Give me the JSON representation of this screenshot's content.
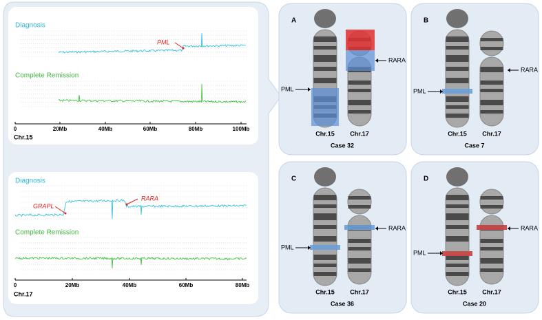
{
  "plots": [
    {
      "chromosome": "Chr.15",
      "track_labels": [
        "Diagnosis",
        "Complete Remission"
      ],
      "annotations": [
        "PML"
      ],
      "xticks": [
        "0",
        "20Mb",
        "40Mb",
        "60Mb",
        "80Mb",
        "100Mb"
      ]
    },
    {
      "chromosome": "Chr.17",
      "track_labels": [
        "Diagnosis",
        "Complete Remission"
      ],
      "annotations": [
        "GRAPL",
        "RARA"
      ],
      "xticks": [
        "0",
        "20Mb",
        "40Mb",
        "60Mb",
        "80Mb"
      ]
    }
  ],
  "panels": [
    {
      "letter": "A",
      "case": "Case 32",
      "chromosomes": [
        "Chr.15",
        "Chr.17"
      ],
      "genes": [
        "PML",
        "RARA"
      ]
    },
    {
      "letter": "B",
      "case": "Case 7",
      "chromosomes": [
        "Chr.15",
        "Chr.17"
      ],
      "genes": [
        "PML",
        "RARA"
      ]
    },
    {
      "letter": "C",
      "case": "Case 36",
      "chromosomes": [
        "Chr.15",
        "Chr.17"
      ],
      "genes": [
        "PML",
        "RARA"
      ]
    },
    {
      "letter": "D",
      "case": "Case 20",
      "chromosomes": [
        "Chr.15",
        "Chr.17"
      ],
      "genes": [
        "PML",
        "RARA"
      ]
    }
  ]
}
